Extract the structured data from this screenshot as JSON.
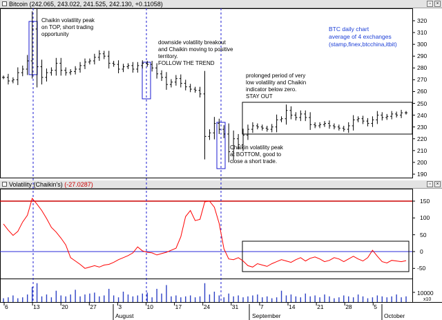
{
  "price_pane": {
    "symbol": "Bitcoin",
    "ohlc": "(242.065, 243.022, 241.525, 242.130, +0.11058)",
    "y_ticks": [
      "320",
      "310",
      "300",
      "290",
      "280",
      "270",
      "260",
      "250",
      "240",
      "230",
      "220",
      "210",
      "200",
      "190"
    ],
    "annotations": {
      "top_peak": "Chaikin volatility peak\non TOP, short trading\nopportunity",
      "breakout": "downside volatility breakout\nand Chaikin moving to positive\nterritory.\nFOLLOW THE TREND",
      "prolonged": "prolonged period of very\nlow volatility and Chaikin\nindicator below zero.\nSTAY OUT",
      "bottom_peak": "Chaikin volatility peak\nat BOTTOM, good to\nclose a short trade."
    },
    "chart_note": "BTC daily chart\naverage of 4 exchanges\n(stamp,finex,btcchina,itbit)"
  },
  "volatility_pane": {
    "title": "Volatility (Chaikin's)",
    "value": "(-27.0287)",
    "y_ticks": [
      "150",
      "100",
      "50",
      "0",
      "-50"
    ]
  },
  "volume_pane": {
    "y_tick": "10000",
    "scale": "x10"
  },
  "x_axis": {
    "day_ticks": [
      "6",
      "13",
      "20",
      "27",
      "3",
      "10",
      "17",
      "24",
      "31",
      "7",
      "14",
      "21",
      "28",
      "5"
    ],
    "months": [
      "August",
      "September",
      "October"
    ]
  },
  "colors": {
    "price_bar": "#000000",
    "volatility_line": "#ff0000",
    "upper_line": "#cc0000",
    "zero_line": "#2a2ad8",
    "marker": "#1a1ad0",
    "volume": "#2b3fc4"
  },
  "chart_data": [
    {
      "type": "ohlc",
      "series": [
        {
          "name": "Bitcoin",
          "close": [
            272,
            269,
            270,
            276,
            279,
            286,
            313,
            281,
            272,
            276,
            278,
            284,
            278,
            276,
            277,
            279,
            282,
            285,
            286,
            289,
            292,
            290,
            284,
            283,
            279,
            281,
            282,
            279,
            282,
            284,
            283,
            280,
            275,
            272,
            266,
            268,
            271,
            267,
            264,
            262,
            261,
            258,
            222,
            225,
            233,
            228,
            224,
            209,
            220,
            215,
            223,
            228,
            231,
            230,
            229,
            228,
            230,
            236,
            237,
            244,
            240,
            238,
            241,
            238,
            232,
            231,
            232,
            233,
            231,
            230,
            229,
            228,
            231,
            236,
            237,
            235,
            233,
            236,
            240,
            238,
            239,
            241,
            240,
            242,
            242
          ]
        }
      ],
      "ylim": [
        190,
        322
      ]
    },
    {
      "type": "line",
      "series": [
        {
          "name": "Volatility (Chaikin's)",
          "values": [
            82,
            64,
            48,
            60,
            88,
            108,
            158,
            141,
            122,
            98,
            72,
            58,
            40,
            20,
            -18,
            -28,
            -38,
            -50,
            -46,
            -42,
            -46,
            -40,
            -38,
            -32,
            -24,
            -18,
            -12,
            -4,
            14,
            2,
            -2,
            -4,
            -10,
            -6,
            -2,
            4,
            10,
            44,
            104,
            122,
            92,
            96,
            148,
            150,
            132,
            84,
            8,
            -22,
            -24,
            -18,
            -28,
            -42,
            -46,
            -36,
            -40,
            -44,
            -36,
            -30,
            -24,
            -28,
            -32,
            -24,
            -18,
            -28,
            -20,
            -16,
            -22,
            -30,
            -26,
            -18,
            -22,
            -30,
            -22,
            -14,
            -22,
            -28,
            -18,
            4,
            -14,
            -30,
            -34,
            -26,
            -28,
            -30,
            -27
          ]
        }
      ],
      "reference_lines": [
        150,
        0
      ],
      "ylim": [
        -68,
        180
      ]
    },
    {
      "type": "bar",
      "series": [
        {
          "name": "Volume",
          "values": [
            4,
            5,
            7,
            4,
            5,
            8,
            16,
            20,
            6,
            8,
            5,
            12,
            7,
            6,
            8,
            13,
            6,
            8,
            9,
            10,
            6,
            7,
            14,
            7,
            5,
            11,
            8,
            6,
            7,
            9,
            10,
            5,
            14,
            9,
            18,
            6,
            7,
            5,
            6,
            7,
            5,
            6,
            20,
            8,
            11,
            7,
            5,
            9,
            6,
            7,
            5,
            6,
            7,
            8,
            5,
            6,
            4,
            5,
            12,
            7,
            8,
            6,
            5,
            9,
            6,
            7,
            5,
            8,
            6,
            4,
            5,
            7,
            6,
            5,
            8,
            6,
            4,
            5,
            7,
            6,
            5,
            6,
            8,
            5,
            6
          ]
        }
      ],
      "ylim": [
        0,
        22
      ]
    }
  ]
}
